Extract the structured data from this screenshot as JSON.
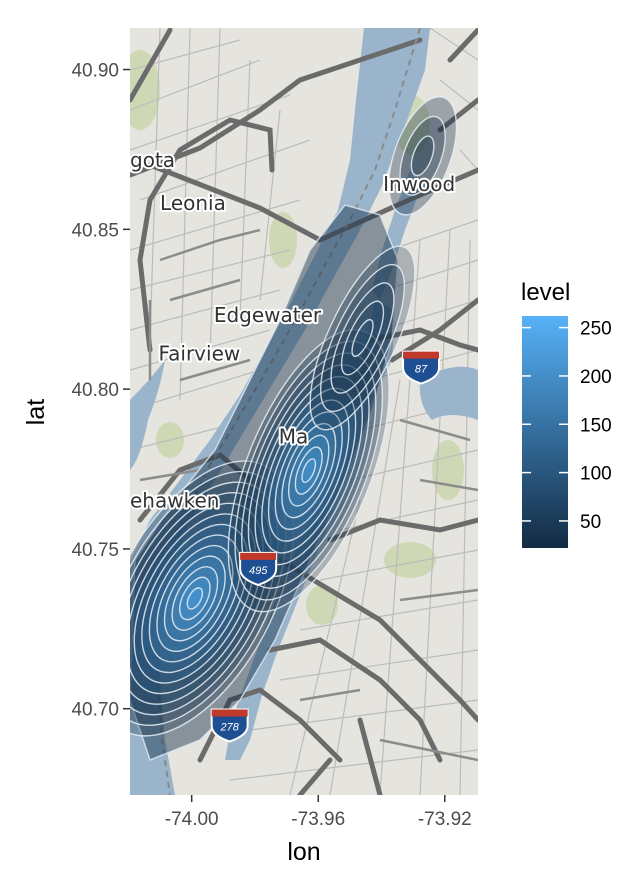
{
  "chart_data": {
    "type": "density2d-map",
    "xlabel": "lon",
    "ylabel": "lat",
    "xlim": [
      -74.0195,
      -73.9095
    ],
    "ylim": [
      40.673,
      40.913
    ],
    "x_ticks": [
      -74.0,
      -73.96,
      -73.92
    ],
    "x_tick_labels": [
      "-74.00",
      "-73.96",
      "-73.92"
    ],
    "y_ticks": [
      40.7,
      40.75,
      40.8,
      40.85,
      40.9
    ],
    "y_tick_labels": [
      "40.70",
      "40.75",
      "40.80",
      "40.85",
      "40.90"
    ],
    "density_peaks": [
      {
        "lon": -73.999,
        "lat": 40.7345,
        "level": 250
      },
      {
        "lon": -73.963,
        "lat": 40.7745,
        "level": 240
      },
      {
        "lon": -73.946,
        "lat": 40.816,
        "level": 90
      },
      {
        "lon": -73.927,
        "lat": 40.873,
        "level": 25
      }
    ],
    "legend": {
      "title": "level",
      "labels": [
        "250",
        "200",
        "150",
        "100",
        "50"
      ],
      "values": [
        250,
        200,
        150,
        100,
        50
      ],
      "min": 22,
      "max": 262,
      "color_low": "#132b43",
      "color_high": "#56b1f7"
    },
    "place_labels": [
      {
        "text": "gota",
        "lon": -74.0195,
        "lat": 40.8695
      },
      {
        "text": "Leonia",
        "lon": -74.01,
        "lat": 40.856
      },
      {
        "text": "Inwood",
        "lon": -73.9395,
        "lat": 40.862
      },
      {
        "text": "Edgewater",
        "lon": -73.993,
        "lat": 40.821
      },
      {
        "text": "Fairview",
        "lon": -74.0105,
        "lat": 40.809
      },
      {
        "text": "Ma",
        "lon": -73.9725,
        "lat": 40.783
      },
      {
        "text": "ehawken",
        "lon": -74.0195,
        "lat": 40.763
      }
    ],
    "highway_shields": [
      {
        "text": "87",
        "lon": -73.9275,
        "lat": 40.808
      },
      {
        "text": "495",
        "lon": -73.979,
        "lat": 40.745
      },
      {
        "text": "278",
        "lon": -73.988,
        "lat": 40.696
      }
    ]
  },
  "colors": {
    "land": "#e6e4df",
    "water": "#9ab4cc",
    "park": "#cfd8b4",
    "road_major": "#6b6b6b",
    "road_minor": "#b9b9b9",
    "contour_line": "#dfe8f2"
  }
}
